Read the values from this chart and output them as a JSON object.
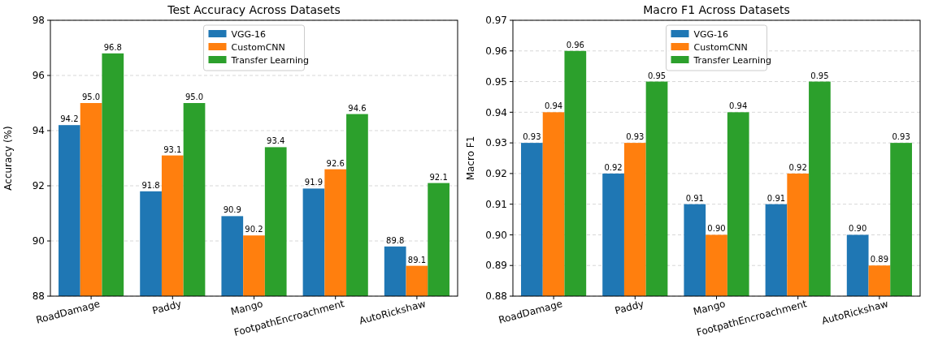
{
  "chart_data": [
    {
      "type": "bar",
      "title": "Test Accuracy Across Datasets",
      "ylabel": "Accuracy (%)",
      "categories": [
        "RoadDamage",
        "Paddy",
        "Mango",
        "FootpathEncroachment",
        "AutoRickshaw"
      ],
      "series": [
        {
          "name": "VGG-16",
          "color": "#1f77b4",
          "values": [
            94.2,
            91.8,
            90.9,
            91.9,
            89.8
          ],
          "value_labels": [
            "94.2",
            "91.8",
            "90.9",
            "91.9",
            "89.8"
          ]
        },
        {
          "name": "CustomCNN",
          "color": "#ff7f0e",
          "values": [
            95.0,
            93.1,
            90.2,
            92.6,
            89.1
          ],
          "value_labels": [
            "95.0",
            "93.1",
            "90.2",
            "92.6",
            "89.1"
          ]
        },
        {
          "name": "Transfer Learning",
          "color": "#2ca02c",
          "values": [
            96.8,
            95.0,
            93.4,
            94.6,
            92.1
          ],
          "value_labels": [
            "96.8",
            "95.0",
            "93.4",
            "94.6",
            "92.1"
          ]
        }
      ],
      "ylim": [
        88,
        98
      ],
      "yticks": [
        88,
        90,
        92,
        94,
        96,
        98
      ],
      "grid": "y",
      "legend": "top"
    },
    {
      "type": "bar",
      "title": "Macro F1 Across Datasets",
      "ylabel": "Macro F1",
      "categories": [
        "RoadDamage",
        "Paddy",
        "Mango",
        "FootpathEncroachment",
        "AutoRickshaw"
      ],
      "series": [
        {
          "name": "VGG-16",
          "color": "#1f77b4",
          "values": [
            0.93,
            0.92,
            0.91,
            0.91,
            0.9
          ],
          "value_labels": [
            "0.93",
            "0.92",
            "0.91",
            "0.91",
            "0.90"
          ]
        },
        {
          "name": "CustomCNN",
          "color": "#ff7f0e",
          "values": [
            0.94,
            0.93,
            0.9,
            0.92,
            0.89
          ],
          "value_labels": [
            "0.94",
            "0.93",
            "0.90",
            "0.92",
            "0.89"
          ]
        },
        {
          "name": "Transfer Learning",
          "color": "#2ca02c",
          "values": [
            0.96,
            0.95,
            0.94,
            0.95,
            0.93
          ],
          "value_labels": [
            "0.96",
            "0.95",
            "0.94",
            "0.95",
            "0.93"
          ]
        }
      ],
      "ylim": [
        0.88,
        0.97
      ],
      "yticks": [
        {
          "value": 0.88,
          "label": "0.88"
        },
        {
          "value": 0.89,
          "label": "0.89"
        },
        {
          "value": 0.9,
          "label": "0.90"
        },
        {
          "value": 0.91,
          "label": "0.91"
        },
        {
          "value": 0.92,
          "label": "0.92"
        },
        {
          "value": 0.93,
          "label": "0.93"
        },
        {
          "value": 0.94,
          "label": "0.94"
        },
        {
          "value": 0.95,
          "label": "0.95"
        },
        {
          "value": 0.96,
          "label": "0.96"
        },
        {
          "value": 0.97,
          "label": "0.97"
        }
      ],
      "grid": "y",
      "legend": "top"
    }
  ]
}
